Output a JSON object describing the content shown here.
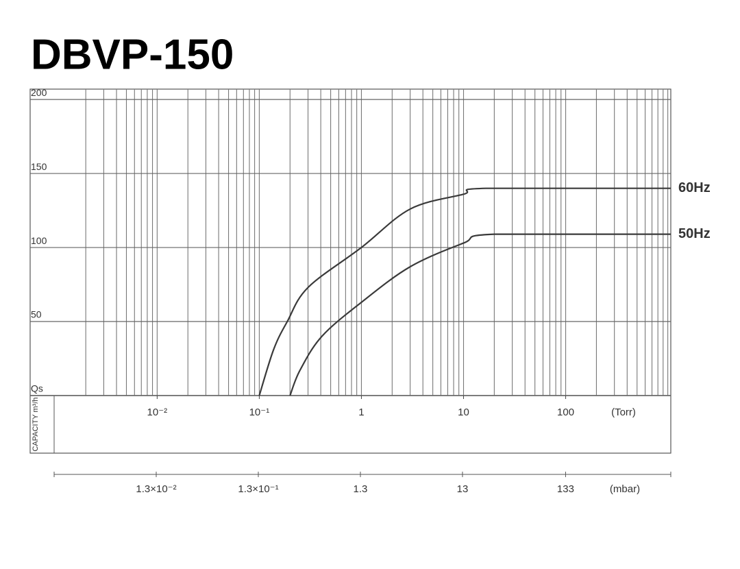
{
  "chart_data": {
    "type": "line",
    "title": "DBVP-150",
    "y_label": "CAPACITY m³/h",
    "x_unit": "(Torr)",
    "x2_unit": "(mbar)",
    "xscale": "log",
    "xlim": [
      0.00098,
      1070
    ],
    "x2lim": [
      0.0013,
      1427
    ],
    "ylim": [
      0,
      207
    ],
    "grid": true,
    "xticks": [
      {
        "value": 0.01,
        "label": "10⁻²"
      },
      {
        "value": 0.1,
        "label": "10⁻¹"
      },
      1,
      10,
      100
    ],
    "xminorticks": [
      0.002,
      0.003,
      0.004,
      0.005,
      0.006,
      0.007,
      0.008,
      0.009,
      0.01,
      0.02,
      0.03,
      0.04,
      0.05,
      0.06,
      0.07,
      0.08,
      0.09,
      0.1,
      0.2,
      0.3,
      0.4,
      0.5,
      0.6,
      0.7,
      0.8,
      0.9,
      1,
      2,
      3,
      4,
      5,
      6,
      7,
      8,
      9,
      10,
      20,
      30,
      40,
      50,
      60,
      70,
      80,
      90,
      100,
      200,
      300,
      400,
      500,
      600,
      700,
      800,
      900,
      1000
    ],
    "x2ticks": [
      {
        "value": 0.013,
        "label": "1.3×10⁻²"
      },
      {
        "value": 0.13,
        "label": "1.3×10⁻¹"
      },
      1.3,
      13,
      133
    ],
    "yticks": [
      {
        "value": 0,
        "label": "Qs"
      },
      50,
      100,
      150,
      200
    ],
    "series": [
      {
        "name": "60Hz",
        "color": "#3a3a3a",
        "x": [
          0.1,
          0.138,
          0.188,
          0.3,
          1,
          3,
          10,
          16.5,
          1070
        ],
        "values": [
          0,
          31,
          50,
          73,
          100,
          126,
          136,
          140,
          140
        ]
      },
      {
        "name": "50Hz",
        "color": "#3a3a3a",
        "x": [
          0.2,
          0.25,
          0.41,
          1,
          3,
          10,
          20,
          1070
        ],
        "values": [
          0,
          17,
          40,
          63,
          87,
          103,
          109,
          109
        ]
      }
    ]
  }
}
